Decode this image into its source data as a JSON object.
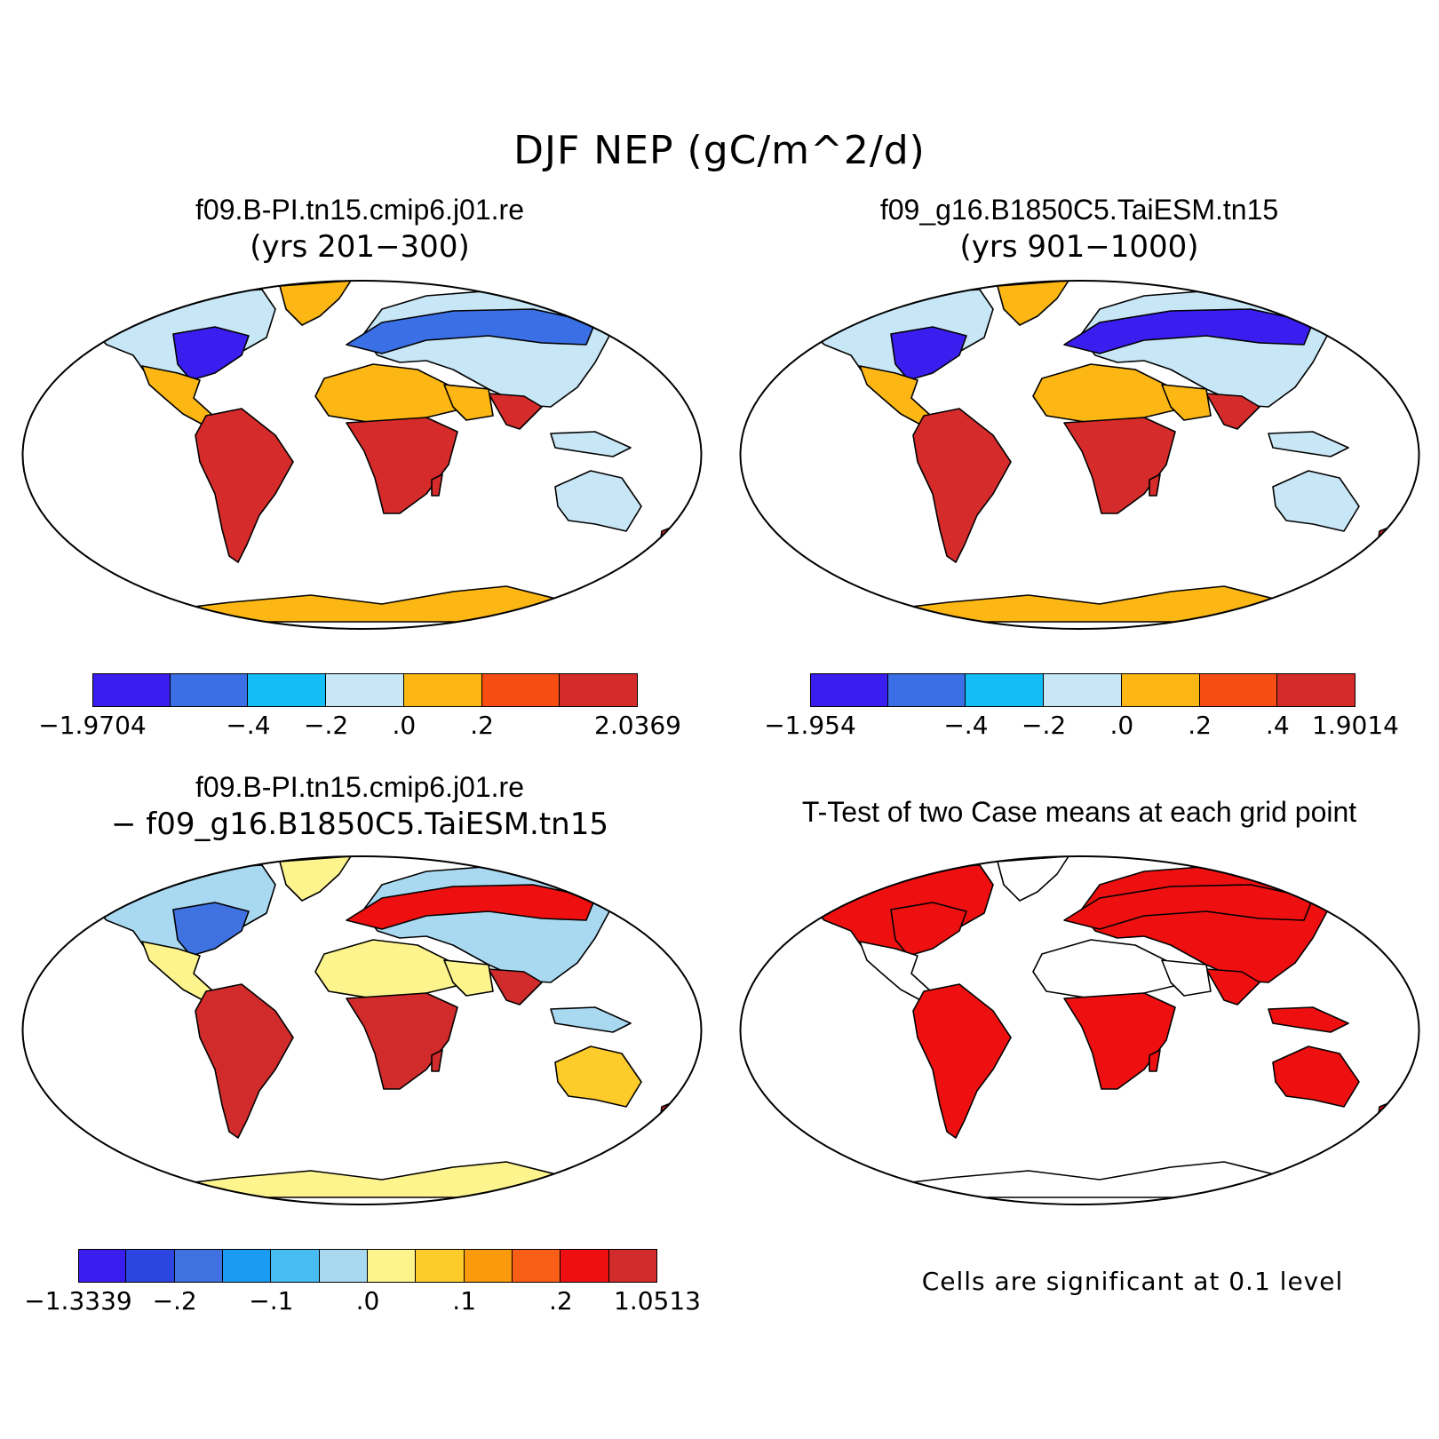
{
  "title": "DJF NEP (gC/m^2/d)",
  "panels": [
    {
      "id": "case1",
      "title": "f09.B-PI.tn15.cmip6.j01.re",
      "subtitle": "(yrs 201−300)"
    },
    {
      "id": "case2",
      "title": "f09_g16.B1850C5.TaiESM.tn15",
      "subtitle": "(yrs 901−1000)"
    },
    {
      "id": "diff",
      "title": "f09.B-PI.tn15.cmip6.j01.re",
      "subtitle": "− f09_g16.B1850C5.TaiESM.tn15"
    },
    {
      "id": "ttest",
      "title": "T-Test of two Case means at each grid point",
      "note": "Cells are significant at 0.1 level"
    }
  ],
  "colorbars": [
    {
      "colors": [
        "#3a1ef0",
        "#3a6fe6",
        "#13bdf6",
        "#c7e6f6",
        "#fdb714",
        "#f74d13",
        "#d62b2b"
      ],
      "labels": [
        "−1.9704",
        "−.4",
        "−.2",
        ".0",
        ".2",
        "2.0369"
      ],
      "label_boundaries": [
        0,
        2,
        3,
        4,
        5,
        7
      ]
    },
    {
      "colors": [
        "#3a1ef0",
        "#3a6fe6",
        "#13bdf6",
        "#c7e6f6",
        "#fdb714",
        "#f74d13",
        "#d62b2b"
      ],
      "labels": [
        "−1.954",
        "−.4",
        "−.2",
        ".0",
        ".2",
        ".4",
        "1.9014"
      ],
      "label_boundaries": [
        0,
        2,
        3,
        4,
        5,
        6,
        7
      ]
    },
    {
      "colors": [
        "#3a1ef0",
        "#2a45e0",
        "#3f72e0",
        "#1a9cf2",
        "#48bdf4",
        "#a9d9f1",
        "#fdf48e",
        "#fdcb2a",
        "#fb9a0c",
        "#f95e17",
        "#ee1010",
        "#d12b2b"
      ],
      "labels": [
        "−1.3339",
        "−.2",
        "−.1",
        ".0",
        ".1",
        ".2",
        "1.0513"
      ],
      "label_boundaries": [
        0,
        2,
        4,
        6,
        8,
        10,
        12
      ]
    }
  ],
  "map_fill": {
    "case1": {
      "northern_land": "#c7e6f6",
      "boreal": "#3a6fe6",
      "eastern_na": "#3a1ef0",
      "tropics": "#d62b2b",
      "subtropics": "#fdb714",
      "greenland": "#fdb714",
      "antarctica": "#fdb714",
      "australia": "#c7e6f6"
    },
    "case2": {
      "northern_land": "#c7e6f6",
      "boreal": "#3a1ef0",
      "eastern_na": "#3a1ef0",
      "tropics": "#d62b2b",
      "subtropics": "#fdb714",
      "greenland": "#fdb714",
      "antarctica": "#fdb714",
      "australia": "#c7e6f6"
    },
    "diff": {
      "northern_land": "#a9d9f1",
      "boreal": "#ee1010",
      "eastern_na": "#3f72e0",
      "tropics": "#d12b2b",
      "subtropics": "#fdf48e",
      "greenland": "#fdf48e",
      "antarctica": "#fdf48e",
      "australia": "#fdcb2a"
    },
    "ttest": {
      "northern_land": "#ee1010",
      "boreal": "#ee1010",
      "eastern_na": "#ee1010",
      "tropics": "#ee1010",
      "subtropics": "#ffffff",
      "greenland": "#ffffff",
      "antarctica": "#ffffff",
      "australia": "#ee1010"
    }
  }
}
